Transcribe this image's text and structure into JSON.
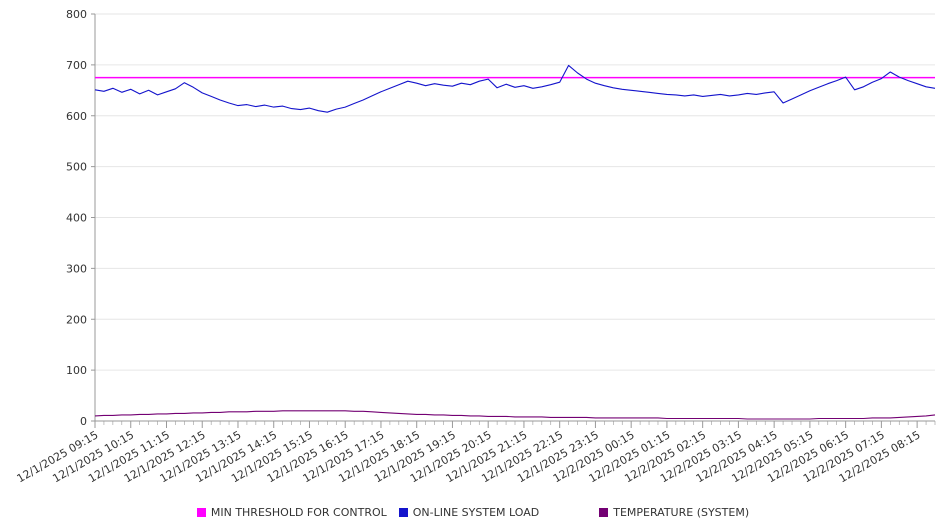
{
  "chart_data": {
    "type": "line",
    "ylim": [
      0,
      800
    ],
    "y_ticks": [
      0,
      100,
      200,
      300,
      400,
      500,
      600,
      700,
      800
    ],
    "label_every": 4,
    "x_tick_interval_minutes": 15,
    "x_labels": [
      "12/1/2025 09:15",
      "12/1/2025 10:15",
      "12/1/2025 11:15",
      "12/1/2025 12:15",
      "12/1/2025 13:15",
      "12/1/2025 14:15",
      "12/1/2025 15:15",
      "12/1/2025 16:15",
      "12/1/2025 17:15",
      "12/1/2025 18:15",
      "12/1/2025 19:15",
      "12/1/2025 20:15",
      "12/1/2025 21:15",
      "12/1/2025 22:15",
      "12/1/2025 23:15",
      "12/2/2025 00:15",
      "12/2/2025 01:15",
      "12/2/2025 02:15",
      "12/2/2025 03:15",
      "12/2/2025 04:15",
      "12/2/2025 05:15",
      "12/2/2025 06:15",
      "12/2/2025 07:15",
      "12/2/2025 08:15"
    ],
    "legend_position": "bottom",
    "grid": true,
    "colors": {
      "threshold": "#ff00ff",
      "load": "#1414cc",
      "temperature": "#730073",
      "gridline": "#e6e6e6",
      "axis": "#999999",
      "text": "#333333"
    },
    "series": [
      {
        "name": "MIN THRESHOLD FOR CONTROL",
        "color": "#ff00ff",
        "constant": 675
      },
      {
        "name": "ON-LINE SYSTEM LOAD",
        "color": "#1414cc",
        "values": [
          651,
          648,
          654,
          646,
          652,
          643,
          650,
          641,
          647,
          653,
          665,
          656,
          645,
          638,
          631,
          625,
          620,
          622,
          618,
          621,
          617,
          619,
          614,
          612,
          615,
          610,
          607,
          613,
          617,
          624,
          631,
          639,
          647,
          654,
          661,
          668,
          664,
          659,
          663,
          660,
          658,
          664,
          661,
          668,
          672,
          655,
          662,
          656,
          659,
          654,
          657,
          661,
          666,
          699,
          684,
          672,
          664,
          659,
          655,
          652,
          650,
          648,
          646,
          644,
          642,
          641,
          639,
          641,
          638,
          640,
          642,
          639,
          641,
          644,
          642,
          645,
          647,
          625,
          633,
          641,
          649,
          656,
          663,
          669,
          676,
          651,
          657,
          666,
          673,
          686,
          676,
          669,
          663,
          657,
          654
        ]
      },
      {
        "name": "TEMPERATURE (SYSTEM)",
        "color": "#730073",
        "values": [
          10,
          11,
          11,
          12,
          12,
          13,
          13,
          14,
          14,
          15,
          15,
          16,
          16,
          17,
          17,
          18,
          18,
          18,
          19,
          19,
          19,
          20,
          20,
          20,
          20,
          20,
          20,
          20,
          20,
          19,
          19,
          18,
          17,
          16,
          15,
          14,
          13,
          13,
          12,
          12,
          11,
          11,
          10,
          10,
          9,
          9,
          9,
          8,
          8,
          8,
          8,
          7,
          7,
          7,
          7,
          7,
          6,
          6,
          6,
          6,
          6,
          6,
          6,
          6,
          5,
          5,
          5,
          5,
          5,
          5,
          5,
          5,
          5,
          4,
          4,
          4,
          4,
          4,
          4,
          4,
          4,
          5,
          5,
          5,
          5,
          5,
          5,
          6,
          6,
          6,
          7,
          8,
          9,
          10,
          12
        ]
      }
    ]
  }
}
